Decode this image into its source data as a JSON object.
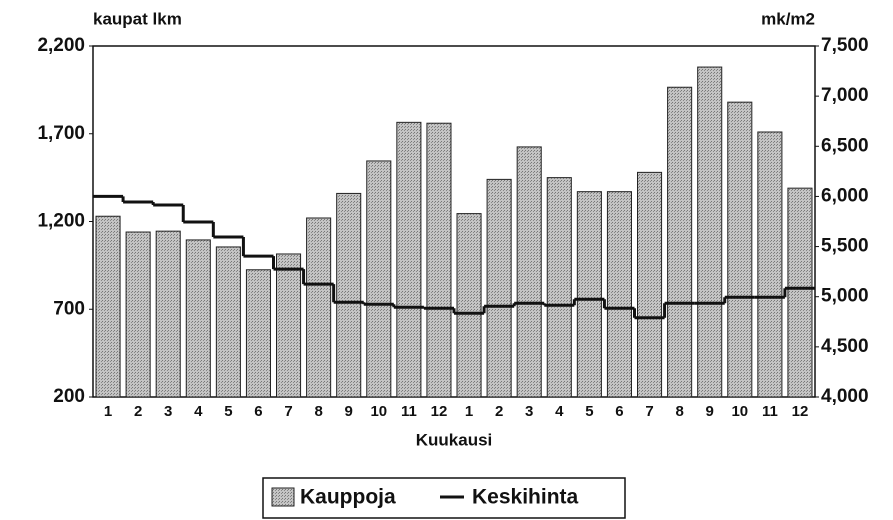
{
  "chart_data": {
    "type": "bar",
    "y_label": "kaupat lkm",
    "y2_label": "mk/m2",
    "x_label": "Kuukausi",
    "categories": [
      "1",
      "2",
      "3",
      "4",
      "5",
      "6",
      "7",
      "8",
      "9",
      "10",
      "11",
      "12",
      "1",
      "2",
      "3",
      "4",
      "5",
      "6",
      "7",
      "8",
      "9",
      "10",
      "11",
      "12"
    ],
    "series": [
      {
        "name": "Kauppoja",
        "color": "#ababab",
        "values": [
          1230,
          1140,
          1145,
          1095,
          1055,
          925,
          1015,
          1220,
          1360,
          1545,
          1765,
          1760,
          1245,
          1440,
          1625,
          1450,
          1370,
          1370,
          1480,
          1965,
          2080,
          1880,
          1710,
          1390
        ]
      },
      {
        "name": "Keskihinta",
        "color": "#111111",
        "axis": "y2",
        "type": "step",
        "values": [
          6000,
          5945,
          5915,
          5745,
          5595,
          5405,
          5275,
          5125,
          4945,
          4925,
          4895,
          4885,
          4835,
          4905,
          4935,
          4915,
          4975,
          4885,
          4790,
          4935,
          4935,
          4995,
          4995,
          5085
        ]
      }
    ],
    "ylim": [
      200,
      2200
    ],
    "yticks": [
      200,
      700,
      {
        "value": 1200,
        "label": "1,200"
      },
      {
        "value": 1700,
        "label": "1,700"
      },
      {
        "value": 2200,
        "label": "2,200"
      }
    ],
    "y2lim": [
      4000,
      7500
    ],
    "y2ticks": [
      {
        "value": 4000,
        "label": "4,000"
      },
      {
        "value": 4500,
        "label": "4,500"
      },
      {
        "value": 5000,
        "label": "5,000"
      },
      {
        "value": 5500,
        "label": "5,500"
      },
      {
        "value": 6000,
        "label": "6,000"
      },
      {
        "value": 6500,
        "label": "6,500"
      },
      {
        "value": 7000,
        "label": "7,000"
      },
      {
        "value": 7500,
        "label": "7,500"
      }
    ],
    "legend": "bottom"
  }
}
